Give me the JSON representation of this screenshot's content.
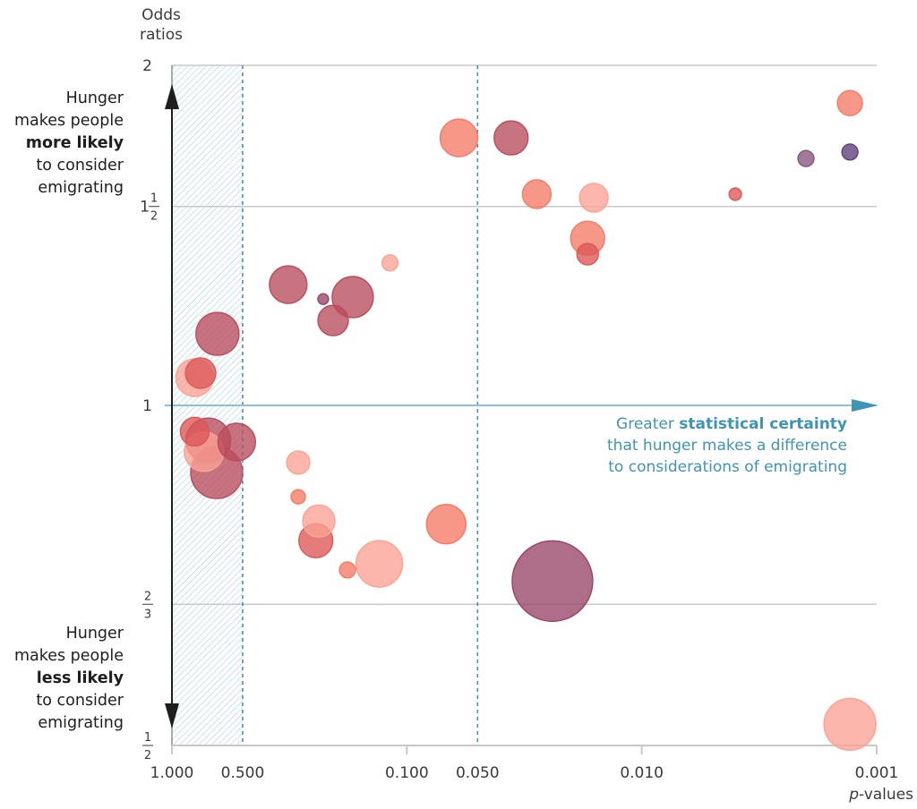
{
  "chart_data": {
    "type": "scatter",
    "subtype": "bubble",
    "ylabel_lines": [
      "Odds",
      "ratios"
    ],
    "xlabel": "p-values",
    "x_scale": "log-reversed",
    "y_scale": "log2",
    "xlim": [
      1.0,
      0.001
    ],
    "ylim": [
      0.5,
      2.0
    ],
    "x_ticks": [
      {
        "value": 1.0,
        "label": "1.000",
        "highlight": false
      },
      {
        "value": 0.5,
        "label": "0.500",
        "highlight": true
      },
      {
        "value": 0.1,
        "label": "0.100",
        "highlight": false
      },
      {
        "value": 0.05,
        "label": "0.050",
        "highlight": true
      },
      {
        "value": 0.01,
        "label": "0.010",
        "highlight": false
      },
      {
        "value": 0.001,
        "label": "0.001",
        "highlight": false
      }
    ],
    "y_ticks": [
      {
        "value": 2.0,
        "whole": "2",
        "num": "",
        "den": ""
      },
      {
        "value": 1.5,
        "whole": "1",
        "num": "1",
        "den": "2"
      },
      {
        "value": 1.0,
        "whole": "1",
        "num": "",
        "den": ""
      },
      {
        "value": 0.6667,
        "whole": "",
        "num": "2",
        "den": "3"
      },
      {
        "value": 0.5,
        "whole": "",
        "num": "1",
        "den": "2"
      }
    ],
    "reference_lines": [
      {
        "axis": "x",
        "value": 0.5,
        "style": "dashed"
      },
      {
        "axis": "x",
        "value": 0.05,
        "style": "dashed"
      },
      {
        "axis": "y",
        "value": 1.0,
        "style": "arrow"
      }
    ],
    "shaded_region": {
      "x_from": 1.0,
      "x_to": 0.5,
      "pattern": "hatch"
    },
    "grid": true,
    "palette": {
      "light": "#fba293",
      "salmon": "#f47a67",
      "red": "#dc5757",
      "darkred": "#b94c5c",
      "maroon": "#974467",
      "mauve": "#85557a",
      "purple": "#5e3f78"
    },
    "points": [
      {
        "p": 0.64,
        "or": 1.157,
        "size": 144,
        "group": "darkred"
      },
      {
        "p": 0.8,
        "or": 1.058,
        "size": 110,
        "group": "light"
      },
      {
        "p": 0.755,
        "or": 1.068,
        "size": 72,
        "group": "red"
      },
      {
        "p": 0.73,
        "or": 0.91,
        "size": 121,
        "group": "light"
      },
      {
        "p": 0.8,
        "or": 0.948,
        "size": 64,
        "group": "red"
      },
      {
        "p": 0.7,
        "or": 0.931,
        "size": 156,
        "group": "darkred"
      },
      {
        "p": 0.53,
        "or": 0.928,
        "size": 110,
        "group": "darkred"
      },
      {
        "p": 0.645,
        "or": 0.872,
        "size": 210,
        "group": "darkred"
      },
      {
        "p": 0.32,
        "or": 1.279,
        "size": 110,
        "group": "darkred"
      },
      {
        "p": 0.227,
        "or": 1.242,
        "size": 9,
        "group": "maroon"
      },
      {
        "p": 0.17,
        "or": 1.247,
        "size": 132,
        "group": "darkred"
      },
      {
        "p": 0.206,
        "or": 1.189,
        "size": 72,
        "group": "darkred"
      },
      {
        "p": 0.118,
        "or": 1.337,
        "size": 20,
        "group": "light"
      },
      {
        "p": 0.06,
        "or": 1.725,
        "size": 110,
        "group": "salmon"
      },
      {
        "p": 0.036,
        "or": 1.725,
        "size": 90,
        "group": "darkred"
      },
      {
        "p": 0.028,
        "or": 1.538,
        "size": 64,
        "group": "salmon"
      },
      {
        "p": 0.016,
        "or": 1.527,
        "size": 64,
        "group": "light"
      },
      {
        "p": 0.017,
        "or": 1.406,
        "size": 90,
        "group": "salmon"
      },
      {
        "p": 0.017,
        "or": 1.361,
        "size": 36,
        "group": "red"
      },
      {
        "p": 0.0013,
        "or": 1.852,
        "size": 49,
        "group": "salmon"
      },
      {
        "p": 0.0013,
        "or": 1.676,
        "size": 20,
        "group": "purple"
      },
      {
        "p": 0.002,
        "or": 1.654,
        "size": 20,
        "group": "mauve"
      },
      {
        "p": 0.004,
        "or": 1.538,
        "size": 12,
        "group": "red"
      },
      {
        "p": 0.29,
        "or": 0.89,
        "size": 42,
        "group": "light"
      },
      {
        "p": 0.29,
        "or": 0.83,
        "size": 16,
        "group": "salmon"
      },
      {
        "p": 0.237,
        "or": 0.79,
        "size": 81,
        "group": "light"
      },
      {
        "p": 0.244,
        "or": 0.759,
        "size": 90,
        "group": "red"
      },
      {
        "p": 0.179,
        "or": 0.715,
        "size": 20,
        "group": "salmon"
      },
      {
        "p": 0.131,
        "or": 0.724,
        "size": 169,
        "group": "light"
      },
      {
        "p": 0.068,
        "or": 0.785,
        "size": 121,
        "group": "salmon"
      },
      {
        "p": 0.024,
        "or": 0.699,
        "size": 506,
        "group": "maroon"
      },
      {
        "p": 0.0013,
        "or": 0.522,
        "size": 210,
        "group": "light"
      }
    ],
    "annotations": {
      "more_likely": {
        "line1": "Hunger",
        "line2": "makes people",
        "bold": "more likely",
        "line4": "to consider",
        "line5": "emigrating"
      },
      "less_likely": {
        "line1": "Hunger",
        "line2": "makes people",
        "bold": "less likely",
        "line4": "to consider",
        "line5": "emigrating"
      },
      "certainty": {
        "pre": "Greater ",
        "bold": "statistical certainty",
        "line2": "that hunger makes a difference",
        "line3": "to considerations of emigrating"
      }
    },
    "colors": {
      "accent": "#3f94b5",
      "grid": "#c8c8c8",
      "hatch": "#a6d6e1",
      "axis_arrow": "#1e1e1e"
    }
  }
}
